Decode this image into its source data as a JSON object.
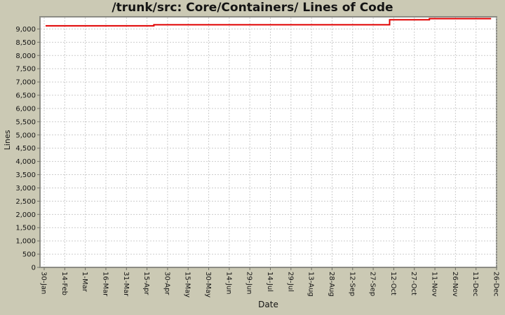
{
  "colors": {
    "background": "#cbc9b4",
    "plot_background": "#ffffff",
    "plot_border": "#8c8c84",
    "grid": "#cccccc",
    "tick": "#6e6e64",
    "text": "#141414",
    "line": "#e00000"
  },
  "chart_data": {
    "type": "line",
    "title": "/trunk/src: Core/Containers/ Lines of Code",
    "xlabel": "Date",
    "ylabel": "Lines",
    "grid": true,
    "legend": "none",
    "x_tick_labels": [
      "30-Jan",
      "14-Feb",
      "1-Mar",
      "16-Mar",
      "31-Mar",
      "15-Apr",
      "30-Apr",
      "15-May",
      "30-May",
      "14-Jun",
      "29-Jun",
      "14-Jul",
      "29-Jul",
      "13-Aug",
      "28-Aug",
      "12-Sep",
      "27-Sep",
      "12-Oct",
      "27-Oct",
      "11-Nov",
      "26-Nov",
      "11-Dec",
      "26-Dec"
    ],
    "x_tick_interval_days": 15,
    "x_domain_days": [
      0,
      330
    ],
    "ylim": [
      0,
      9460
    ],
    "y_tick_step": 500,
    "y_tick_max": 9000,
    "series": [
      {
        "name": "Lines of Code",
        "step": true,
        "points_day_value": [
          [
            1,
            9120
          ],
          [
            80,
            9120
          ],
          [
            80,
            9160
          ],
          [
            252,
            9160
          ],
          [
            252,
            9350
          ],
          [
            281,
            9350
          ],
          [
            281,
            9390
          ],
          [
            326,
            9390
          ]
        ]
      }
    ]
  }
}
